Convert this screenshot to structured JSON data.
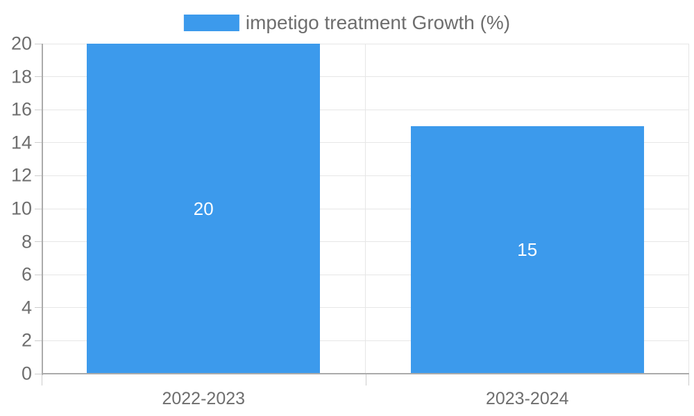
{
  "legend": {
    "label": "impetigo treatment Growth (%)"
  },
  "colors": {
    "bar": "#3c9aec",
    "grid": "#e6e6e6",
    "axis": "#ababab",
    "tick": "#cccccc",
    "text": "#6e6e6e",
    "bar_label": "#ffffff"
  },
  "chart_data": {
    "type": "bar",
    "categories": [
      "2022-2023",
      "2023-2024"
    ],
    "values": [
      20,
      15
    ],
    "bar_labels": [
      "20",
      "15"
    ],
    "title": "",
    "xlabel": "",
    "ylabel": "",
    "ylim": [
      0,
      20
    ],
    "ytick_step": 2,
    "yticks": [
      0,
      2,
      4,
      6,
      8,
      10,
      12,
      14,
      16,
      18,
      20
    ],
    "grid": true,
    "legend": [
      "impetigo treatment Growth (%)"
    ],
    "legend_position": "top-center"
  }
}
